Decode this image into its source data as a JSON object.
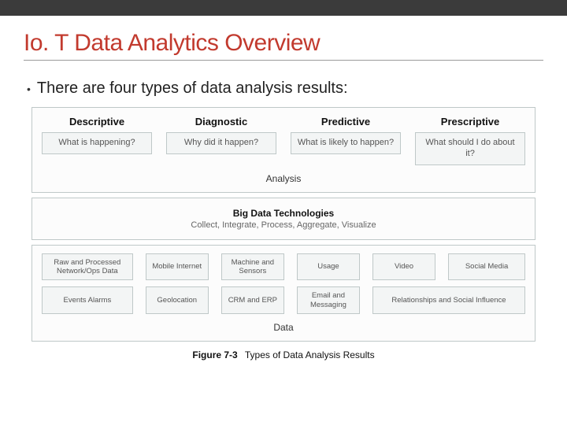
{
  "colors": {
    "topbar": "#3b3b3b",
    "title": "#c23a2e",
    "panel_border": "#bfc8c8",
    "box_bg": "#f3f5f5",
    "box_text": "#555555",
    "background": "#ffffff"
  },
  "title": "Io. T Data Analytics Overview",
  "bullet": "There are four types of data analysis results:",
  "analysis": {
    "label": "Analysis",
    "columns": [
      {
        "heading": "Descriptive",
        "question": "What is happening?"
      },
      {
        "heading": "Diagnostic",
        "question": "Why did it happen?"
      },
      {
        "heading": "Predictive",
        "question": "What is likely to happen?"
      },
      {
        "heading": "Prescriptive",
        "question": "What should I do about it?"
      }
    ]
  },
  "bigdata": {
    "title": "Big Data Technologies",
    "subtitle": "Collect, Integrate, Process, Aggregate, Visualize"
  },
  "data_section": {
    "label": "Data",
    "row1": [
      "Raw and Processed Network/Ops Data",
      "Mobile Internet",
      "Machine and Sensors",
      "Usage",
      "Video",
      "Social Media"
    ],
    "row2": [
      "Events Alarms",
      "Geolocation",
      "CRM and ERP",
      "Email and Messaging",
      "Relationships and Social Influence"
    ]
  },
  "caption": {
    "fignum": "Figure 7-3",
    "text": "Types of Data Analysis Results"
  }
}
